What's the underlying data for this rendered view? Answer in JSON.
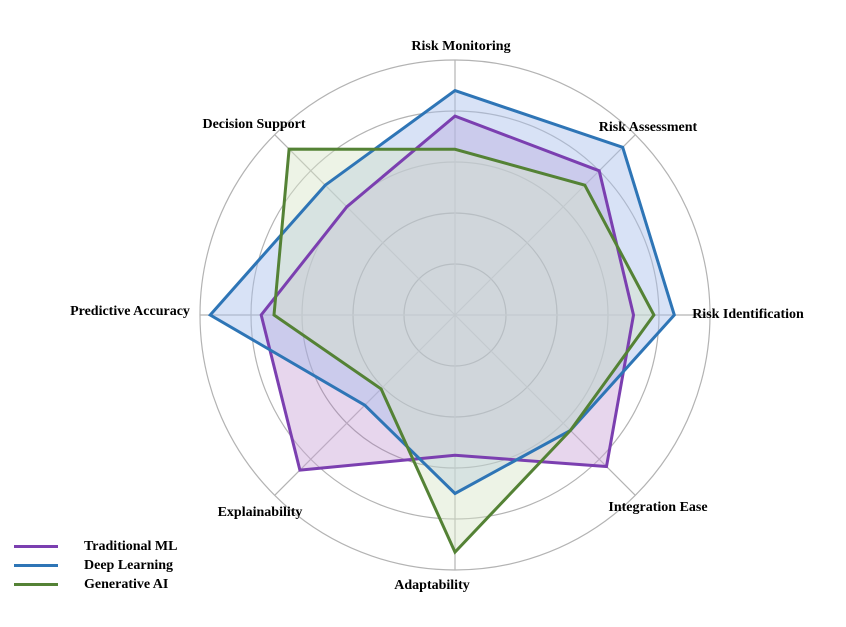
{
  "chart_data": {
    "type": "radar",
    "title": "",
    "axes": [
      "Risk Identification",
      "Risk Assessment",
      "Risk Monitoring",
      "Decision Support",
      "Predictive Accuracy",
      "Explainability",
      "Adaptability",
      "Integration Ease"
    ],
    "range": [
      0,
      10
    ],
    "rings": [
      2,
      4,
      6,
      8,
      10
    ],
    "grid": true,
    "legend_position": "bottom-left",
    "series": [
      {
        "name": "Traditional ML",
        "values": [
          7.0,
          8.0,
          7.8,
          6.0,
          7.6,
          8.6,
          5.5,
          8.4
        ],
        "color": "#7B3FB0",
        "fill": "#C9A4D6"
      },
      {
        "name": "Deep Learning",
        "values": [
          8.6,
          9.3,
          8.8,
          7.2,
          9.6,
          5.0,
          7.0,
          6.4
        ],
        "color": "#2E75B6",
        "fill": "#A9BEEA"
      },
      {
        "name": "Generative AI",
        "values": [
          7.8,
          7.2,
          6.5,
          9.2,
          7.1,
          4.1,
          9.3,
          6.4
        ],
        "color": "#548235",
        "fill": "#D6E5C8"
      }
    ]
  }
}
